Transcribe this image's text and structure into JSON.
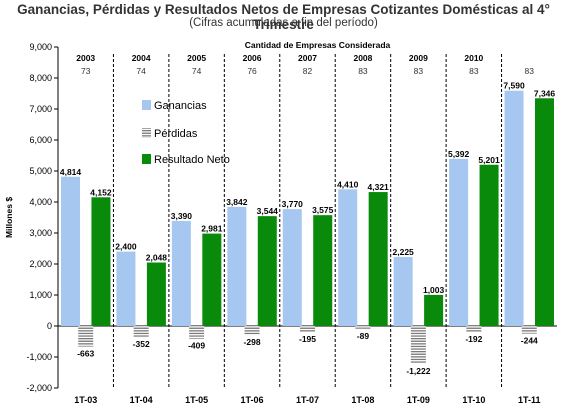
{
  "title": "Ganancias, Pérdidas y Resultados Netos de Empresas Cotizantes Domésticas al 4° Trimestre",
  "subtitle": "(Cifras acumuladas a fin del período)",
  "chart_data": {
    "type": "bar",
    "ylabel": "Millones $",
    "ylim": [
      -2000,
      9000
    ],
    "yticks": [
      "9,000",
      "8,000",
      "7,000",
      "6,000",
      "5,000",
      "4,000",
      "3,000",
      "2,000",
      "1,000",
      "0",
      "-1,000",
      "-2,000"
    ],
    "ytick_values": [
      9000,
      8000,
      7000,
      6000,
      5000,
      4000,
      3000,
      2000,
      1000,
      0,
      -1000,
      -2000
    ],
    "categories": [
      "1T-03",
      "1T-04",
      "1T-05",
      "1T-06",
      "1T-07",
      "1T-08",
      "1T-09",
      "1T-10",
      "1T-11"
    ],
    "header_label": "Cantidad de Empresas Considerada",
    "years": [
      "2003",
      "2004",
      "2005",
      "2006",
      "2007",
      "2008",
      "2009",
      "2010",
      ""
    ],
    "company_counts": [
      "73",
      "74",
      "74",
      "76",
      "82",
      "83",
      "83",
      "83",
      "83"
    ],
    "legend_placement": "top-left",
    "series": [
      {
        "name": "Ganancias",
        "color": "#a6c8f0",
        "values": [
          4814,
          2400,
          3390,
          3842,
          3770,
          4410,
          2225,
          5392,
          7590
        ],
        "labels": [
          "4,814",
          "2,400",
          "3,390",
          "3,842",
          "3,770",
          "4,410",
          "2,225",
          "5,392",
          "7,590"
        ]
      },
      {
        "name": "Pérdidas",
        "color": "#888888",
        "pattern": "horizontal-stripes",
        "values": [
          -663,
          -352,
          -409,
          -298,
          -195,
          -89,
          -1222,
          -192,
          -244
        ],
        "labels": [
          "-663",
          "-352",
          "-409",
          "-298",
          "-195",
          "-89",
          "-1,222",
          "-192",
          "-244"
        ]
      },
      {
        "name": "Resultado Neto",
        "color": "#0a8a0a",
        "values": [
          4152,
          2048,
          2981,
          3544,
          3575,
          4321,
          1003,
          5201,
          7346
        ],
        "labels": [
          "4,152",
          "2,048",
          "2,981",
          "3,544",
          "3,575",
          "4,321",
          "1,003",
          "5,201",
          "7,346"
        ]
      }
    ]
  }
}
